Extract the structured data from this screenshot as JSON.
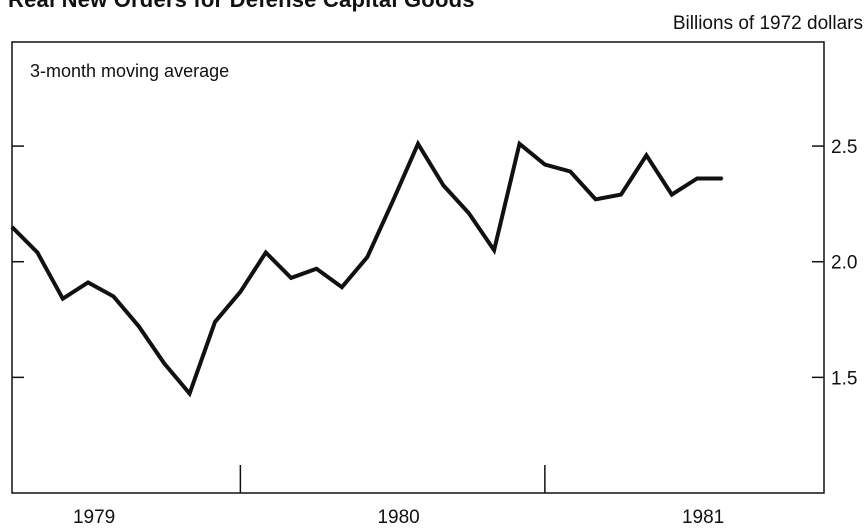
{
  "chart_data": {
    "type": "line",
    "title": "Real New Orders for Defense Capital Goods",
    "unit_label": "Billions of 1972 dollars",
    "annotation": "3-month moving average",
    "x_tick_labels": [
      "1979",
      "1980",
      "1981"
    ],
    "y_tick_labels": [
      "1.5",
      "2.0",
      "2.5"
    ],
    "y_ticks": [
      1.5,
      2.0,
      2.5
    ],
    "ylim": [
      1.0,
      2.95
    ],
    "x_range_months": [
      "1978-10",
      "1981-06"
    ],
    "grid": false,
    "series": [
      {
        "color": "#111111",
        "x": [
          "1978-10",
          "1978-11",
          "1978-12",
          "1979-01",
          "1979-02",
          "1979-03",
          "1979-04",
          "1979-05",
          "1979-06",
          "1979-07",
          "1979-08",
          "1979-09",
          "1979-10",
          "1979-11",
          "1979-12",
          "1980-01",
          "1980-02",
          "1980-03",
          "1980-04",
          "1980-05",
          "1980-06",
          "1980-07",
          "1980-08",
          "1980-09",
          "1980-10",
          "1980-11",
          "1980-12",
          "1981-01",
          "1981-02",
          "1981-03",
          "1981-04",
          "1981-05"
        ],
        "y": [
          2.15,
          2.04,
          1.84,
          1.91,
          1.85,
          1.72,
          1.56,
          1.43,
          1.74,
          1.87,
          2.04,
          1.93,
          1.97,
          1.89,
          2.02,
          2.26,
          2.51,
          2.33,
          2.21,
          2.05,
          2.51,
          2.42,
          2.39,
          2.27,
          2.29,
          2.46,
          2.29,
          2.36,
          2.36,
          null,
          null,
          null
        ]
      }
    ]
  }
}
